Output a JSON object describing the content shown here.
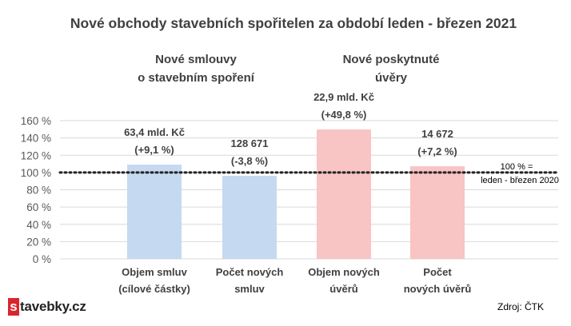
{
  "chart_data": {
    "type": "bar",
    "title": "Nové obchody stavebních spořitelen za období leden - březen 2021",
    "group_titles": [
      [
        "Nové smlouvy",
        "o stavebním spoření"
      ],
      [
        "Nové poskytnuté",
        "úvěry"
      ]
    ],
    "categories": [
      [
        "Objem smluv",
        "(cílové částky)"
      ],
      [
        "Počet  nových",
        "smluv"
      ],
      [
        "Objem nových",
        "úvěrů"
      ],
      [
        "Počet",
        "nových úvěrů"
      ]
    ],
    "values": [
      109.1,
      96.2,
      149.8,
      107.2
    ],
    "data_labels": [
      [
        "63,4 mld. Kč",
        "(+9,1 %)"
      ],
      [
        "128 671",
        "(-3,8 %)"
      ],
      [
        "22,9 mld. Kč",
        "(+49,8 %)"
      ],
      [
        "14 672",
        "(+7,2 %)"
      ]
    ],
    "colors": [
      "#c5d9f1",
      "#c5d9f1",
      "#f8c4c4",
      "#f8c4c4"
    ],
    "y_ticks": [
      "0 %",
      "20 %",
      "40 %",
      "60 %",
      "80 %",
      "100 %",
      "120 %",
      "140 %",
      "160 %"
    ],
    "ylim": [
      0,
      160
    ],
    "grid": true,
    "reference_line": {
      "value": 100,
      "label": [
        "100 % =",
        "leden - březen  2020"
      ],
      "style": "dotted"
    }
  },
  "source": "Zdroj: ČTK",
  "logo": {
    "initial": "s",
    "rest": "tavebky.cz",
    "accent": "#d9262c"
  }
}
